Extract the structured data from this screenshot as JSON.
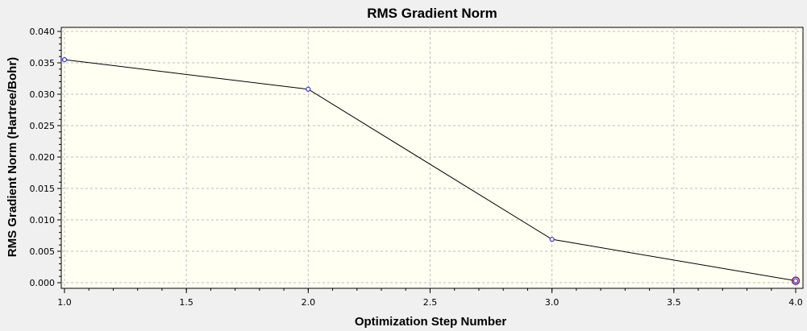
{
  "chart_data": {
    "type": "line",
    "title": "RMS Gradient Norm",
    "xlabel": "Optimization Step Number",
    "ylabel": "RMS Gradient Norm (Hartree/Bohr)",
    "xlim": [
      1.0,
      4.0
    ],
    "ylim": [
      0.0,
      0.04
    ],
    "x_ticks": [
      "1.0",
      "1.5",
      "2.0",
      "2.5",
      "3.0",
      "3.5",
      "4.0"
    ],
    "y_ticks": [
      "0.000",
      "0.005",
      "0.010",
      "0.015",
      "0.020",
      "0.025",
      "0.030",
      "0.035",
      "0.040"
    ],
    "grid": true,
    "series": [
      {
        "x": [
          1,
          2,
          3,
          4
        ],
        "y": [
          0.0355,
          0.0308,
          0.0069,
          0.0003
        ]
      }
    ],
    "colors": {
      "plot_background": "#fffff2",
      "outer_background": "#f0f0f0",
      "line": "#000000",
      "marker": "#3333ff",
      "grid": "#bdbdbd",
      "final_point_ring": "#8a2050"
    }
  }
}
